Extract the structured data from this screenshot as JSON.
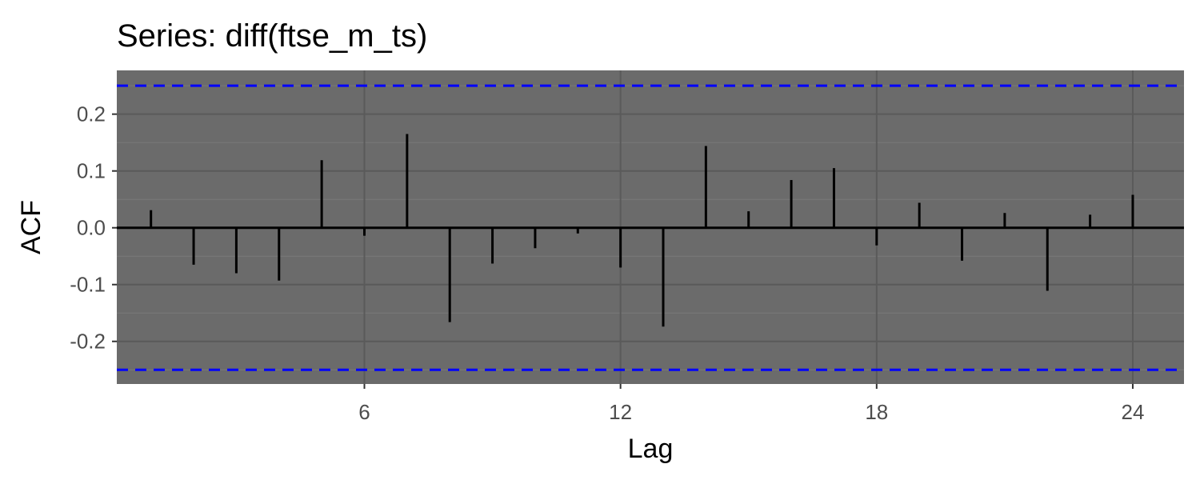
{
  "chart_data": {
    "type": "bar",
    "title": "Series: diff(ftse_m_ts)",
    "xlabel": "Lag",
    "ylabel": "ACF",
    "x": [
      1,
      2,
      3,
      4,
      5,
      6,
      7,
      8,
      9,
      10,
      11,
      12,
      13,
      14,
      15,
      16,
      17,
      18,
      19,
      20,
      21,
      22,
      23,
      24
    ],
    "values": [
      0.031,
      -0.065,
      -0.08,
      -0.093,
      0.119,
      -0.014,
      0.165,
      -0.166,
      -0.063,
      -0.036,
      -0.01,
      -0.07,
      -0.174,
      0.144,
      0.029,
      0.084,
      0.105,
      -0.031,
      0.044,
      -0.058,
      0.026,
      -0.111,
      0.023,
      0.058
    ],
    "xlim": [
      0.2,
      25.2
    ],
    "ylim": [
      -0.275,
      0.277
    ],
    "x_ticks": [
      "6",
      "12",
      "18",
      "24"
    ],
    "y_ticks": [
      "0.2",
      "0.1",
      "0.0",
      "-0.1",
      "-0.2"
    ],
    "confidence_bounds": [
      0.25,
      -0.25
    ],
    "grid": true,
    "colors": {
      "panel_background": "#6b6b6b",
      "grid_major": "#5a5a5a",
      "grid_minor": "#7a7a7a",
      "spike": "#000000",
      "zero_line": "#000000",
      "confidence_line": "#0000ff"
    }
  }
}
